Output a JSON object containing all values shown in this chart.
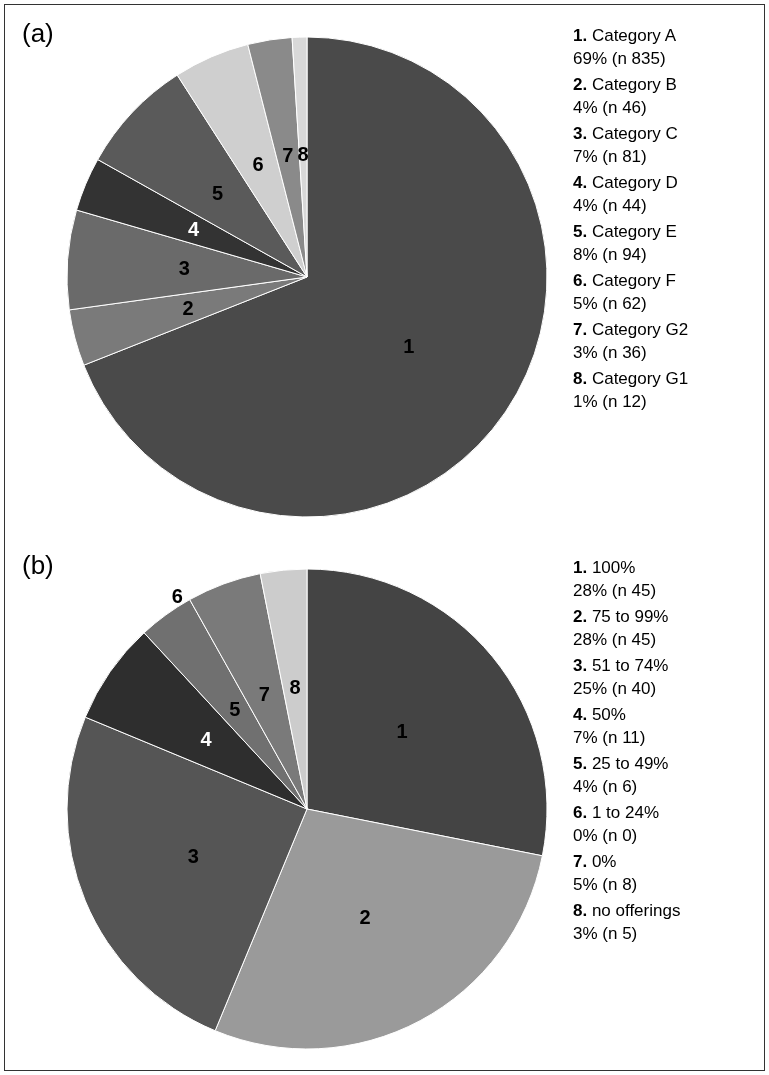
{
  "chart_data": [
    {
      "type": "pie",
      "title": "(a)",
      "categories": [
        "1",
        "2",
        "3",
        "4",
        "5",
        "6",
        "7",
        "8"
      ],
      "values": [
        69.01,
        3.8,
        6.69,
        3.64,
        7.77,
        5.12,
        2.98,
        0.99
      ],
      "colors": [
        "#4a4a4a",
        "#7a7a7a",
        "#6a6a6a",
        "#333333",
        "#5a5a5a",
        "#cfcfcf",
        "#8a8a8a",
        "#d8d8d8"
      ],
      "annotations": [
        "1. Category A\n69% (n 835)",
        "2. Category B\n4% (n 46)",
        "3. Category C\n7% (n 81)",
        "4. Category D\n4% (n 44)",
        "5. Category E\n8% (n 94)",
        "6. Category F\n5% (n 62)",
        "7. Category G2\n3% (n 36)",
        "8. Category G1\n1% (n 12)"
      ]
    },
    {
      "type": "pie",
      "title": "(b)",
      "categories": [
        "1",
        "2",
        "3",
        "4",
        "5",
        "6",
        "7",
        "8"
      ],
      "values": [
        28.125,
        28.125,
        25,
        6.875,
        3.75,
        0,
        5,
        3.125
      ],
      "colors": [
        "#444444",
        "#9a9a9a",
        "#555555",
        "#2e2e2e",
        "#707070",
        "#888888",
        "#7a7a7a",
        "#cccccc"
      ],
      "annotations": [
        "1. 100%\n28% (n 45)",
        "2. 75 to 99%\n28% (n 45)",
        "3. 51 to 74%\n25% (n 40)",
        "4. 50%\n7% (n 11)",
        "5. 25 to 49%\n4% (n 6)",
        "6. 1 to 24%\n0% (n 0)",
        "7. 0%\n5% (n 8)",
        "8. no offerings\n3% (n 5)"
      ]
    }
  ]
}
